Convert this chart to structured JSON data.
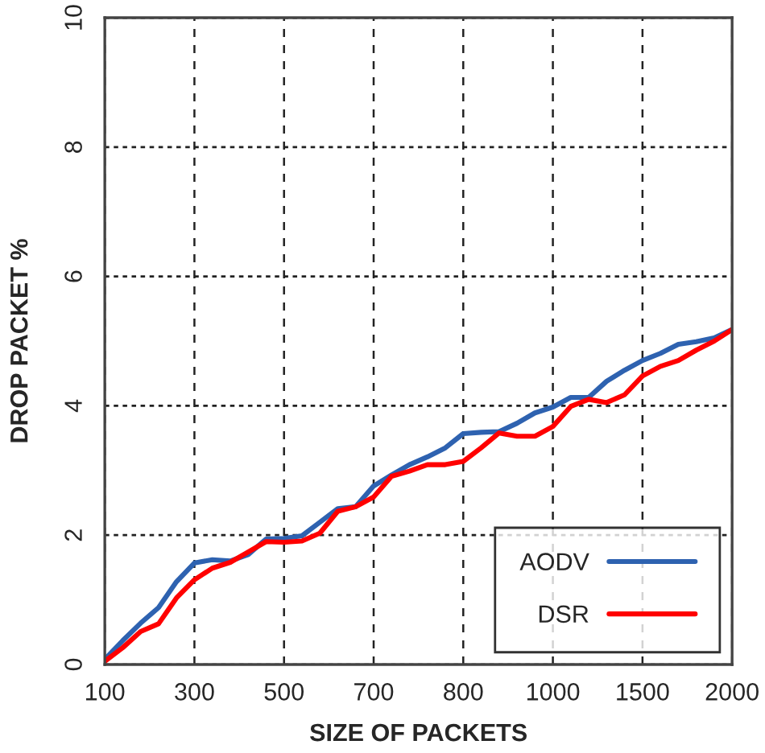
{
  "chart_data": {
    "type": "line",
    "xlabel": "SIZE OF PACKETS",
    "ylabel": "DROP PACKET %",
    "categories": [
      "100",
      null,
      null,
      null,
      null,
      "300",
      null,
      null,
      null,
      null,
      "500",
      null,
      null,
      null,
      null,
      "700",
      null,
      null,
      null,
      null,
      "800",
      null,
      null,
      null,
      null,
      "1000",
      null,
      null,
      null,
      null,
      "1500",
      null,
      null,
      null,
      null,
      "2000"
    ],
    "ylim": [
      0,
      10
    ],
    "yticks": [
      0,
      2,
      4,
      6,
      8,
      10
    ],
    "grid": true,
    "legend": "bottom right",
    "line_style": "solid",
    "marker": "none",
    "series": [
      {
        "name": "AODV",
        "color": "#2e62b0",
        "values": [
          0.08,
          0.37,
          0.64,
          0.88,
          1.28,
          1.57,
          1.62,
          1.6,
          1.7,
          1.94,
          1.95,
          1.99,
          2.2,
          2.41,
          2.44,
          2.76,
          2.93,
          3.09,
          3.21,
          3.35,
          3.57,
          3.59,
          3.6,
          3.73,
          3.89,
          3.98,
          4.13,
          4.13,
          4.38,
          4.55,
          4.7,
          4.81,
          4.95,
          4.99,
          5.05,
          5.18
        ]
      },
      {
        "name": "DSR",
        "color": "#ff0000",
        "values": [
          0.05,
          0.26,
          0.51,
          0.63,
          1.03,
          1.31,
          1.49,
          1.58,
          1.74,
          1.9,
          1.89,
          1.91,
          2.03,
          2.37,
          2.44,
          2.59,
          2.91,
          2.99,
          3.09,
          3.09,
          3.14,
          3.35,
          3.58,
          3.53,
          3.53,
          3.68,
          3.99,
          4.1,
          4.05,
          4.17,
          4.46,
          4.61,
          4.7,
          4.86,
          5.0,
          5.18
        ]
      }
    ]
  }
}
